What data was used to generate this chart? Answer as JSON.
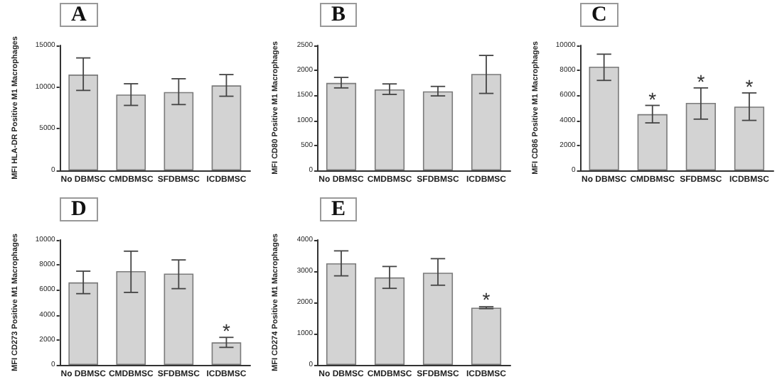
{
  "chart_data": [
    {
      "type": "bar",
      "title": "A",
      "ylabel": "MFI HLA-DR Positive M1 Macrophages",
      "categories": [
        "No DBMSC",
        "CMDBMSC",
        "SFDBMSC",
        "ICDBMSC"
      ],
      "color": "#d3d3d3",
      "values": [
        11500,
        9100,
        9400,
        10200
      ],
      "errors": [
        [
          9600,
          13500
        ],
        [
          7800,
          10400
        ],
        [
          7900,
          11000
        ],
        [
          8900,
          11500
        ]
      ],
      "ylim": [
        0,
        15000
      ],
      "yticks": [
        0,
        5000,
        10000,
        15000
      ],
      "grid": false
    },
    {
      "type": "bar",
      "title": "B",
      "ylabel": "MFI CD80 Positive M1 Macrophages",
      "categories": [
        "No DBMSC",
        "CMDBMSC",
        "SFDBMSC",
        "ICDBMSC"
      ],
      "color": "#d3d3d3",
      "values": [
        1750,
        1620,
        1580,
        1930
      ],
      "errors": [
        [
          1650,
          1860
        ],
        [
          1520,
          1730
        ],
        [
          1490,
          1680
        ],
        [
          1540,
          2300
        ]
      ],
      "ylim": [
        0,
        2500
      ],
      "yticks": [
        0,
        500,
        1000,
        1500,
        2000,
        2500
      ],
      "grid": false
    },
    {
      "type": "bar",
      "title": "C",
      "ylabel": "MFI CD86 Positive M1 Macrophages",
      "categories": [
        "No DBMSC",
        "CMDBMSC",
        "SFDBMSC",
        "ICDBMSC"
      ],
      "color": "#d3d3d3",
      "values": [
        8300,
        4500,
        5400,
        5100
      ],
      "errors": [
        [
          7200,
          9300
        ],
        [
          3800,
          5200
        ],
        [
          4100,
          6600
        ],
        [
          4000,
          6200
        ]
      ],
      "ylim": [
        0,
        10000
      ],
      "yticks": [
        0,
        2000,
        4000,
        6000,
        8000,
        10000
      ],
      "grid": false,
      "annotations": [
        {
          "text": "*",
          "x": "CMDBMSC",
          "y": 5700
        },
        {
          "text": "*",
          "x": "SFDBMSC",
          "y": 7100
        },
        {
          "text": "*",
          "x": "ICDBMSC",
          "y": 6700
        }
      ]
    },
    {
      "type": "bar",
      "title": "D",
      "ylabel": "MFI CD273 Positive M1 Macrophages",
      "categories": [
        "No DBMSC",
        "CMDBMSC",
        "SFDBMSC",
        "ICDBMSC"
      ],
      "color": "#d3d3d3",
      "values": [
        6600,
        7500,
        7300,
        1800
      ],
      "errors": [
        [
          5700,
          7500
        ],
        [
          5800,
          9100
        ],
        [
          6100,
          8400
        ],
        [
          1400,
          2200
        ]
      ],
      "ylim": [
        0,
        10000
      ],
      "yticks": [
        0,
        2000,
        4000,
        6000,
        8000,
        10000
      ],
      "grid": false,
      "annotations": [
        {
          "text": "*",
          "x": "ICDBMSC",
          "y": 2700
        }
      ]
    },
    {
      "type": "bar",
      "title": "E",
      "ylabel": "MFI CD274 Positive M1 Macrophages",
      "categories": [
        "No DBMSC",
        "CMDBMSC",
        "SFDBMSC",
        "ICDBMSC"
      ],
      "color": "#d3d3d3",
      "values": [
        3250,
        2800,
        2950,
        1830
      ],
      "errors": [
        [
          2850,
          3650
        ],
        [
          2450,
          3150
        ],
        [
          2550,
          3400
        ],
        [
          1800,
          1860
        ]
      ],
      "ylim": [
        0,
        4000
      ],
      "yticks": [
        0,
        1000,
        2000,
        3000,
        4000
      ],
      "grid": false,
      "annotations": [
        {
          "text": "*",
          "x": "ICDBMSC",
          "y": 2080
        }
      ]
    }
  ]
}
